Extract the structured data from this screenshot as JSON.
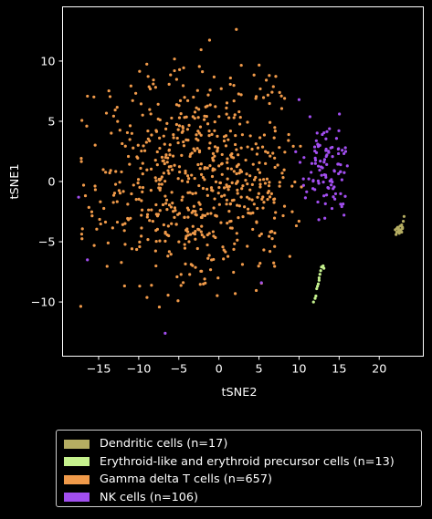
{
  "chart_data": {
    "type": "scatter",
    "title": "",
    "xlabel": "tSNE2",
    "ylabel": "tSNE1",
    "xlim": [
      -19.5,
      25.5
    ],
    "ylim": [
      -14.5,
      14.5
    ],
    "xticks": [
      -15,
      -10,
      -5,
      0,
      5,
      10,
      15,
      20
    ],
    "yticks": [
      -10,
      -5,
      0,
      5,
      10
    ],
    "grid": false,
    "legend_position": "below",
    "series": [
      {
        "name": "Dendritic cells (n=17)",
        "color": "#b5ad62",
        "count": 17,
        "points": [
          [
            22.0,
            -4.0
          ],
          [
            22.2,
            -4.2
          ],
          [
            22.4,
            -3.9
          ],
          [
            22.6,
            -4.1
          ],
          [
            22.3,
            -3.8
          ],
          [
            22.8,
            -3.6
          ],
          [
            22.5,
            -4.3
          ],
          [
            22.9,
            -3.9
          ],
          [
            23.0,
            -3.3
          ],
          [
            23.1,
            -2.9
          ],
          [
            22.1,
            -4.4
          ],
          [
            22.7,
            -4.0
          ],
          [
            22.4,
            -4.1
          ],
          [
            22.9,
            -3.8
          ],
          [
            22.6,
            -3.7
          ],
          [
            22.2,
            -3.9
          ],
          [
            22.8,
            -4.2
          ]
        ]
      },
      {
        "name": "Erythroid-like and erythroid precursor cells (n=13)",
        "color": "#c6f28e",
        "count": 13,
        "points": [
          [
            11.8,
            -10.0
          ],
          [
            12.0,
            -9.7
          ],
          [
            12.1,
            -9.5
          ],
          [
            12.3,
            -8.7
          ],
          [
            12.4,
            -8.5
          ],
          [
            12.5,
            -8.0
          ],
          [
            12.6,
            -7.7
          ],
          [
            12.7,
            -7.4
          ],
          [
            12.8,
            -7.1
          ],
          [
            13.0,
            -7.0
          ],
          [
            12.2,
            -8.9
          ],
          [
            12.5,
            -8.2
          ],
          [
            13.1,
            -7.2
          ]
        ]
      },
      {
        "name": "Gamma delta T cells (n=657)",
        "color": "#f09a4a",
        "count": 657,
        "generator": {
          "center": [
            -2.0,
            0.6
          ],
          "spread": [
            7.2,
            4.6
          ],
          "xrange": [
            -17.5,
            10.5
          ],
          "yrange": [
            -13.5,
            13.5
          ],
          "seed": 7
        }
      },
      {
        "name": "NK cells (n=106)",
        "color": "#a24ef0",
        "count": 106,
        "generator": {
          "center": [
            13.6,
            1.0
          ],
          "spread": [
            1.7,
            1.9
          ],
          "xrange": [
            9.5,
            16.5
          ],
          "yrange": [
            -3.8,
            7.6
          ],
          "seed": 31
        },
        "extra_points": [
          [
            -17.5,
            -1.3
          ],
          [
            -16.4,
            -6.5
          ],
          [
            -6.7,
            -12.6
          ],
          [
            5.3,
            -8.4
          ],
          [
            10.0,
            6.8
          ]
        ]
      }
    ]
  }
}
